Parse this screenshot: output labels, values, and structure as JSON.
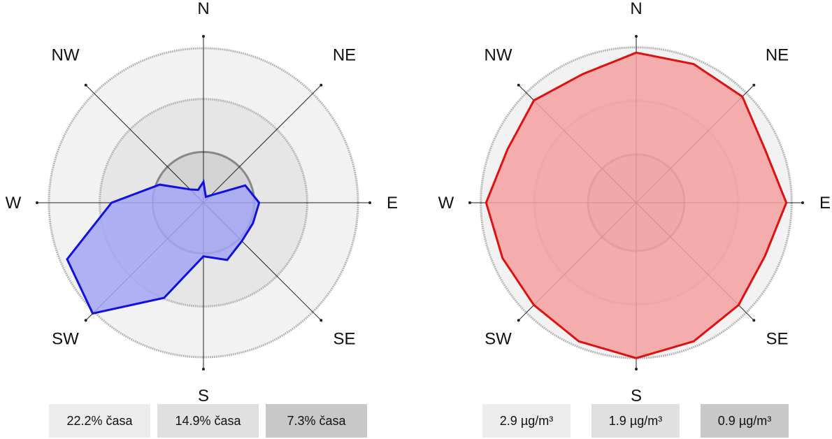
{
  "chart_data": [
    {
      "type": "radar",
      "directions": [
        "N",
        "NE",
        "E",
        "SE",
        "S",
        "SW",
        "W",
        "NW"
      ],
      "ring_labels": [
        "22.2% časa",
        "14.9% časa",
        "7.3% časa"
      ],
      "ring_values": [
        22.2,
        14.9,
        7.3
      ],
      "max": 23.1,
      "angles_deg": [
        0,
        22.5,
        45,
        67.5,
        90,
        112.5,
        135,
        157.5,
        180,
        202.5,
        225,
        247.5,
        270,
        292.5,
        315,
        337.5
      ],
      "values": [
        3.0,
        0.9,
        1.5,
        6.5,
        8.0,
        7.7,
        7.8,
        8.9,
        7.7,
        14.8,
        22.5,
        21.2,
        13.2,
        6.8,
        2.7,
        2.0
      ],
      "fill": "#a4a4f4",
      "stroke": "#1010e0"
    },
    {
      "type": "radar",
      "directions": [
        "N",
        "NE",
        "E",
        "SE",
        "S",
        "SW",
        "W",
        "NW"
      ],
      "ring_labels": [
        "2.9 µg/m³",
        "1.9 µg/m³",
        "0.9 µg/m³"
      ],
      "ring_values": [
        2.9,
        1.9,
        0.9
      ],
      "max": 3.0,
      "angles_deg": [
        0,
        22.5,
        45,
        67.5,
        90,
        112.5,
        135,
        157.5,
        180,
        202.5,
        225,
        247.5,
        270,
        292.5,
        315,
        337.5
      ],
      "values": [
        2.8,
        2.8,
        2.8,
        2.6,
        2.8,
        2.6,
        2.7,
        2.8,
        2.9,
        2.8,
        2.7,
        2.7,
        2.8,
        2.6,
        2.7,
        2.6
      ],
      "fill": "#f4a0a0",
      "stroke": "#e01010"
    }
  ]
}
